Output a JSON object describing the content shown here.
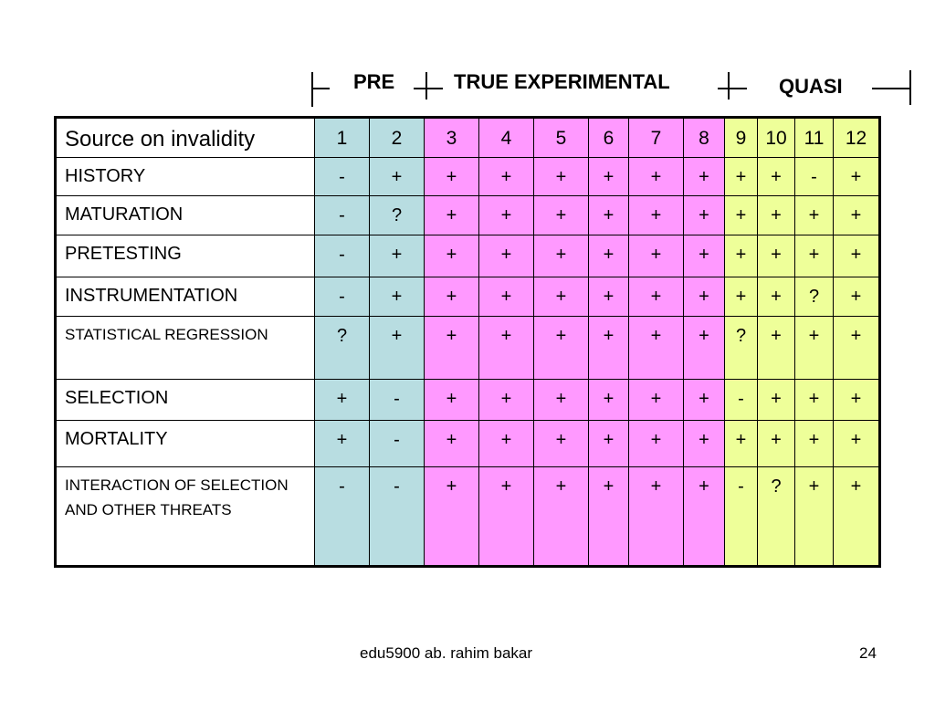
{
  "header": {
    "pre_label": "PRE",
    "true_label": "TRUE EXPERIMENTAL",
    "quasi_label": "QUASI"
  },
  "table": {
    "title": "Source on invalidity",
    "design_numbers": [
      "1",
      "2",
      "3",
      "4",
      "5",
      "6",
      "7",
      "8",
      "9",
      "10",
      "11",
      "12"
    ],
    "group_colors": {
      "pre": "#b8dde1",
      "true": "#ff99ff",
      "quasi": "#eeff99"
    },
    "rows": [
      {
        "label": "HISTORY",
        "values": [
          "-",
          "+",
          "+",
          "+",
          "+",
          "+",
          "+",
          "+",
          "+",
          "+",
          "-",
          "+"
        ]
      },
      {
        "label": "MATURATION",
        "values": [
          "-",
          "?",
          "+",
          "+",
          "+",
          "+",
          "+",
          "+",
          "+",
          "+",
          "+",
          "+"
        ]
      },
      {
        "label": "PRETESTING",
        "values": [
          "-",
          "+",
          "+",
          "+",
          "+",
          "+",
          "+",
          "+",
          "+",
          "+",
          "+",
          "+"
        ]
      },
      {
        "label": "INSTRUMENTATION",
        "values": [
          "-",
          "+",
          "+",
          "+",
          "+",
          "+",
          "+",
          "+",
          "+",
          "+",
          "?",
          "+"
        ]
      },
      {
        "label": "STATISTICAL REGRESSION",
        "values": [
          "?",
          "+",
          "+",
          "+",
          "+",
          "+",
          "+",
          "+",
          "?",
          "+",
          "+",
          "+"
        ]
      },
      {
        "label": "SELECTION",
        "values": [
          "+",
          "-",
          "+",
          "+",
          "+",
          "+",
          "+",
          "+",
          "-",
          "+",
          "+",
          "+"
        ]
      },
      {
        "label": "MORTALITY",
        "values": [
          "+",
          "-",
          "+",
          "+",
          "+",
          "+",
          "+",
          "+",
          "+",
          "+",
          "+",
          "+"
        ]
      },
      {
        "label": "INTERACTION OF SELECTION AND OTHER THREATS",
        "values": [
          "-",
          "-",
          "+",
          "+",
          "+",
          "+",
          "+",
          "+",
          "-",
          "?",
          "+",
          "+"
        ]
      }
    ]
  },
  "footer": {
    "credit": "edu5900 ab. rahim bakar",
    "page_number": "24"
  }
}
